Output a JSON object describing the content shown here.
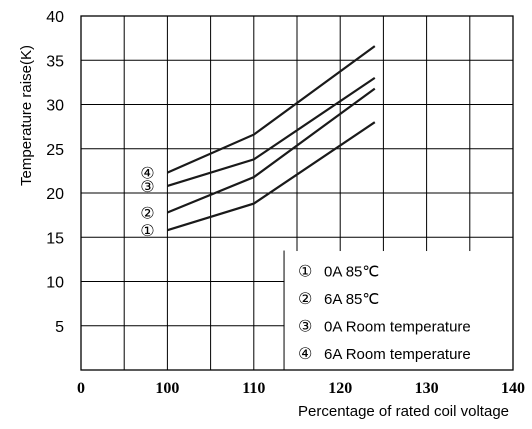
{
  "chart_data": {
    "type": "line",
    "xlabel": "Percentage of rated coil voltage",
    "ylabel": "Temperature raise(K)",
    "xlim": [
      90,
      140
    ],
    "ylim": [
      0,
      40
    ],
    "x_ticks": [
      "0",
      "100",
      "110",
      "120",
      "130",
      "140"
    ],
    "y_ticks": [
      "5",
      "10",
      "15",
      "20",
      "25",
      "30",
      "35",
      "40"
    ],
    "grid": true,
    "legend_position": "bottom-right",
    "series": [
      {
        "marker": "①",
        "name": "0A  85℃",
        "x": [
          100,
          110,
          124
        ],
        "y": [
          15.8,
          18.8,
          28
        ]
      },
      {
        "marker": "②",
        "name": "6A  85℃",
        "x": [
          100,
          110,
          124
        ],
        "y": [
          17.8,
          21.8,
          31.8
        ]
      },
      {
        "marker": "③",
        "name": "0A  Room temperature",
        "x": [
          100,
          110,
          124
        ],
        "y": [
          20.8,
          23.8,
          33
        ]
      },
      {
        "marker": "④",
        "name": "6A  Room temperature",
        "x": [
          100,
          110,
          124
        ],
        "y": [
          22.3,
          26.6,
          36.6
        ]
      }
    ]
  }
}
